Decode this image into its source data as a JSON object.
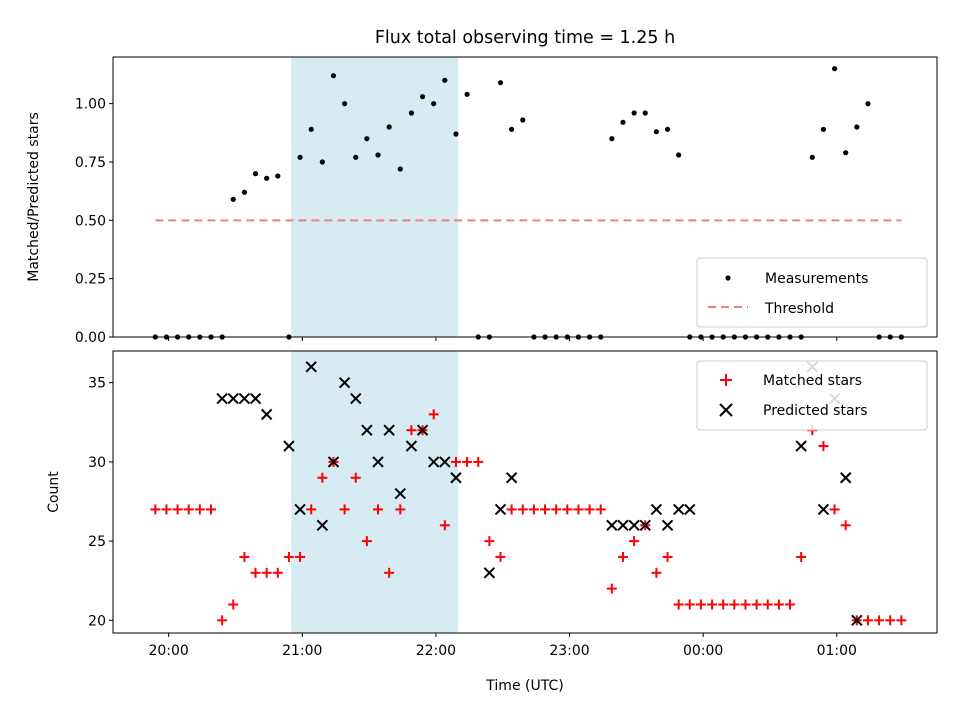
{
  "title": "Flux total observing time = 1.25 h",
  "colors": {
    "span": "#add8e6",
    "measurement": "#000000",
    "threshold": "#f08080",
    "matched": "#ff0000",
    "predicted": "#000000"
  },
  "chart_data": [
    {
      "type": "scatter",
      "ylabel": "Matched/Predicted stars",
      "xlabel": "",
      "ylim": [
        0,
        1.2
      ],
      "yticks": [
        0,
        0.25,
        0.5,
        0.75,
        1.0
      ],
      "ytick_labels": [
        "0.00",
        "0.25",
        "0.50",
        "0.75",
        "1.00"
      ],
      "xlim": [
        "19:35",
        "01:45"
      ],
      "highlight_span": [
        "20:55",
        "22:10"
      ],
      "legend": {
        "position": "lower right",
        "entries": [
          "Measurements",
          "Threshold"
        ]
      },
      "series": [
        {
          "name": "Measurements",
          "marker": "dot",
          "x": [
            "19:54",
            "19:59",
            "20:04",
            "20:09",
            "20:14",
            "20:19",
            "20:24",
            "20:29",
            "20:34",
            "20:39",
            "20:44",
            "20:49",
            "20:54",
            "20:59",
            "21:04",
            "21:09",
            "21:14",
            "21:19",
            "21:24",
            "21:29",
            "21:34",
            "21:39",
            "21:44",
            "21:49",
            "21:54",
            "21:59",
            "22:04",
            "22:09",
            "22:14",
            "22:19",
            "22:24",
            "22:29",
            "22:34",
            "22:39",
            "22:44",
            "22:49",
            "22:54",
            "22:59",
            "23:04",
            "23:09",
            "23:14",
            "23:19",
            "23:24",
            "23:29",
            "23:34",
            "23:39",
            "23:44",
            "23:49",
            "23:54",
            "23:59",
            "00:04",
            "00:09",
            "00:14",
            "00:19",
            "00:24",
            "00:29",
            "00:34",
            "00:39",
            "00:44",
            "00:49",
            "00:54",
            "00:59",
            "01:04",
            "01:09",
            "01:14",
            "01:19",
            "01:24",
            "01:29"
          ],
          "y": [
            0,
            0,
            0,
            0,
            0,
            0,
            0,
            0.59,
            0.62,
            0.7,
            0.68,
            0.69,
            0,
            0.77,
            0.89,
            0.75,
            1.12,
            1.0,
            0.77,
            0.85,
            0.78,
            0.9,
            0.72,
            0.96,
            1.03,
            1.0,
            1.1,
            0.87,
            1.04,
            0,
            0,
            1.09,
            0.89,
            0.93,
            0,
            0,
            0,
            0,
            0,
            0,
            0,
            0.85,
            0.92,
            0.96,
            0.96,
            0.88,
            0.89,
            0.78,
            0,
            0,
            0,
            0,
            0,
            0,
            0,
            0,
            0,
            0,
            0,
            0.77,
            0.89,
            1.15,
            0.79,
            0.9,
            1.0,
            0,
            0,
            0
          ]
        },
        {
          "name": "Threshold",
          "marker": "dashed-line",
          "x": [
            "19:54",
            "01:29"
          ],
          "y": [
            0.5,
            0.5
          ]
        }
      ]
    },
    {
      "type": "scatter",
      "ylabel": "Count",
      "xlabel": "Time (UTC)",
      "ylim": [
        19.2,
        37
      ],
      "yticks": [
        20,
        25,
        30,
        35
      ],
      "ytick_labels": [
        "20",
        "25",
        "30",
        "35"
      ],
      "xlim": [
        "19:35",
        "01:45"
      ],
      "xticks": [
        "20:00",
        "21:00",
        "22:00",
        "23:00",
        "00:00",
        "01:00"
      ],
      "highlight_span": [
        "20:55",
        "22:10"
      ],
      "legend": {
        "position": "upper right",
        "entries": [
          "Matched stars",
          "Predicted stars"
        ]
      },
      "series": [
        {
          "name": "Matched stars",
          "marker": "plus",
          "x": [
            "19:54",
            "19:59",
            "20:04",
            "20:09",
            "20:14",
            "20:19",
            "20:24",
            "20:29",
            "20:34",
            "20:39",
            "20:44",
            "20:49",
            "20:54",
            "20:59",
            "21:04",
            "21:09",
            "21:14",
            "21:19",
            "21:24",
            "21:29",
            "21:34",
            "21:39",
            "21:44",
            "21:49",
            "21:54",
            "21:59",
            "22:04",
            "22:09",
            "22:14",
            "22:19",
            "22:24",
            "22:29",
            "22:34",
            "22:39",
            "22:44",
            "22:49",
            "22:54",
            "22:59",
            "23:04",
            "23:09",
            "23:14",
            "23:19",
            "23:24",
            "23:29",
            "23:34",
            "23:39",
            "23:44",
            "23:49",
            "23:54",
            "23:59",
            "00:04",
            "00:09",
            "00:14",
            "00:19",
            "00:24",
            "00:29",
            "00:34",
            "00:39",
            "00:44",
            "00:49",
            "00:54",
            "00:59",
            "01:04",
            "01:09",
            "01:14",
            "01:19",
            "01:24",
            "01:29"
          ],
          "y": [
            27,
            27,
            27,
            27,
            27,
            27,
            20,
            21,
            24,
            23,
            23,
            23,
            24,
            24,
            27,
            29,
            30,
            27,
            29,
            25,
            27,
            23,
            27,
            32,
            32,
            33,
            26,
            30,
            30,
            30,
            25,
            24,
            27,
            27,
            27,
            27,
            27,
            27,
            27,
            27,
            27,
            22,
            24,
            25,
            26,
            23,
            24,
            21,
            21,
            21,
            21,
            21,
            21,
            21,
            21,
            21,
            21,
            21,
            24,
            32,
            31,
            27,
            26,
            20,
            20,
            20,
            20,
            20
          ]
        },
        {
          "name": "Predicted stars",
          "marker": "x",
          "x": [
            "20:24",
            "20:29",
            "20:34",
            "20:39",
            "20:44",
            "20:54",
            "20:59",
            "21:04",
            "21:09",
            "21:14",
            "21:19",
            "21:24",
            "21:29",
            "21:34",
            "21:39",
            "21:44",
            "21:49",
            "21:54",
            "21:59",
            "22:04",
            "22:09",
            "22:24",
            "22:29",
            "22:34",
            "23:19",
            "23:24",
            "23:29",
            "23:34",
            "23:39",
            "23:44",
            "23:49",
            "23:54",
            "00:44",
            "00:49",
            "00:54",
            "00:59",
            "01:04",
            "01:09"
          ],
          "y": [
            34,
            34,
            34,
            34,
            33,
            31,
            27,
            36,
            26,
            30,
            35,
            34,
            32,
            30,
            32,
            28,
            31,
            32,
            30,
            30,
            29,
            23,
            27,
            29,
            26,
            26,
            26,
            26,
            27,
            26,
            27,
            27,
            31,
            36,
            27,
            34,
            29,
            20
          ]
        }
      ]
    }
  ]
}
